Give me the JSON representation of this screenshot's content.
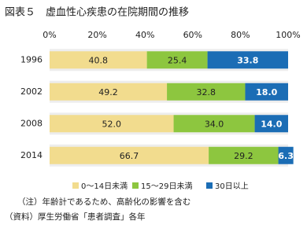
{
  "chart_data": {
    "type": "stacked-barh",
    "title": "図表５　虚血性心疾患の在院期間の推移",
    "categories": [
      "1996",
      "2002",
      "2008",
      "2014"
    ],
    "series": [
      {
        "name": "0〜14日未満",
        "color": "#f2dc8e",
        "values": [
          40.8,
          49.2,
          52.0,
          66.7
        ],
        "value_labels": [
          "40.8",
          "49.2",
          "52.0",
          "66.7"
        ]
      },
      {
        "name": "15〜29日未満",
        "color": "#8dc63f",
        "values": [
          25.4,
          32.8,
          34.0,
          29.2
        ],
        "value_labels": [
          "25.4",
          "32.8",
          "34.0",
          "29.2"
        ]
      },
      {
        "name": "30日以上",
        "color": "#1b6db5",
        "values": [
          33.8,
          18.0,
          14.0,
          6.3
        ],
        "value_labels": [
          "33.8",
          "18.0",
          "14.0",
          "6.3"
        ]
      }
    ],
    "xlim": [
      0,
      100
    ],
    "xticks": [
      {
        "value": 0,
        "label": "0%"
      },
      {
        "value": 20,
        "label": "20%"
      },
      {
        "value": 40,
        "label": "40%"
      },
      {
        "value": 60,
        "label": "60%"
      },
      {
        "value": 80,
        "label": "80%"
      },
      {
        "value": 100,
        "label": "100%"
      }
    ],
    "legend": "bottom",
    "notes": [
      "（注）年齢計であるため、高齢化の影響を含む",
      "（資料）厚生労働省「患者調査」各年"
    ]
  }
}
